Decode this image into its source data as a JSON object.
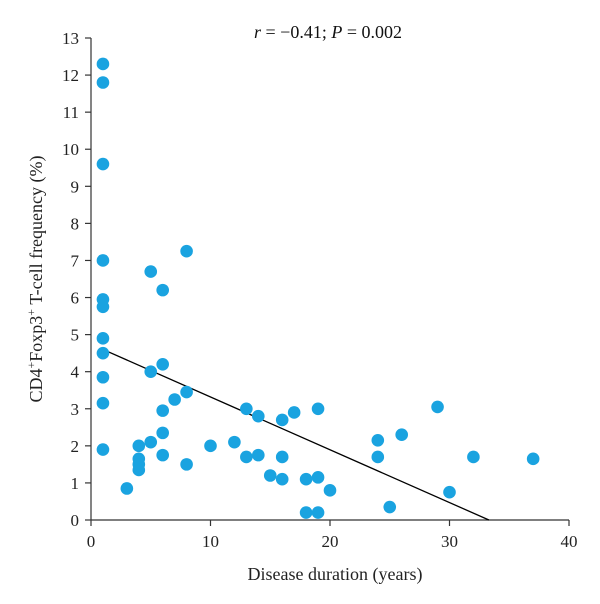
{
  "chart_data": {
    "type": "scatter",
    "title": "",
    "xlabel": "Disease duration (years)",
    "ylabel_parts": [
      "CD4",
      "+",
      "Foxp3",
      "+",
      " T-cell frequency (%)"
    ],
    "annotation_parts": [
      "r",
      " = −0.41; ",
      "P",
      " = 0.002"
    ],
    "xlim": [
      0,
      40
    ],
    "ylim": [
      0,
      13
    ],
    "x_ticks": [
      0,
      10,
      20,
      30,
      40
    ],
    "y_ticks": [
      0,
      1,
      2,
      3,
      4,
      5,
      6,
      7,
      8,
      9,
      10,
      11,
      12,
      13
    ],
    "grid": false,
    "marker_color": "#1aa3e0",
    "line_color": "#000000",
    "points": [
      {
        "x": 1,
        "y": 12.3
      },
      {
        "x": 1,
        "y": 11.8
      },
      {
        "x": 1,
        "y": 9.6
      },
      {
        "x": 1,
        "y": 7.0
      },
      {
        "x": 1,
        "y": 5.95
      },
      {
        "x": 1,
        "y": 5.75
      },
      {
        "x": 1,
        "y": 4.9
      },
      {
        "x": 1,
        "y": 4.5
      },
      {
        "x": 1,
        "y": 3.85
      },
      {
        "x": 1,
        "y": 3.15
      },
      {
        "x": 1,
        "y": 1.9
      },
      {
        "x": 3,
        "y": 0.85
      },
      {
        "x": 4,
        "y": 2.0
      },
      {
        "x": 4,
        "y": 1.65
      },
      {
        "x": 4,
        "y": 1.5
      },
      {
        "x": 4,
        "y": 1.35
      },
      {
        "x": 5,
        "y": 6.7
      },
      {
        "x": 5,
        "y": 4.0
      },
      {
        "x": 5,
        "y": 2.1
      },
      {
        "x": 6,
        "y": 6.2
      },
      {
        "x": 6,
        "y": 4.2
      },
      {
        "x": 6,
        "y": 2.95
      },
      {
        "x": 6,
        "y": 2.35
      },
      {
        "x": 6,
        "y": 1.75
      },
      {
        "x": 7,
        "y": 3.25
      },
      {
        "x": 8,
        "y": 7.25
      },
      {
        "x": 8,
        "y": 3.45
      },
      {
        "x": 8,
        "y": 1.5
      },
      {
        "x": 10,
        "y": 2.0
      },
      {
        "x": 12,
        "y": 2.1
      },
      {
        "x": 13,
        "y": 3.0
      },
      {
        "x": 13,
        "y": 1.7
      },
      {
        "x": 14,
        "y": 2.8
      },
      {
        "x": 14,
        "y": 1.75
      },
      {
        "x": 15,
        "y": 1.2
      },
      {
        "x": 16,
        "y": 2.7
      },
      {
        "x": 16,
        "y": 1.7
      },
      {
        "x": 16,
        "y": 1.1
      },
      {
        "x": 17,
        "y": 2.9
      },
      {
        "x": 18,
        "y": 1.1
      },
      {
        "x": 18,
        "y": 0.2
      },
      {
        "x": 19,
        "y": 3.0
      },
      {
        "x": 19,
        "y": 1.15
      },
      {
        "x": 19,
        "y": 0.2
      },
      {
        "x": 20,
        "y": 0.8
      },
      {
        "x": 24,
        "y": 2.15
      },
      {
        "x": 24,
        "y": 1.7
      },
      {
        "x": 25,
        "y": 0.35
      },
      {
        "x": 26,
        "y": 2.3
      },
      {
        "x": 29,
        "y": 3.05
      },
      {
        "x": 30,
        "y": 0.75
      },
      {
        "x": 32,
        "y": 1.7
      },
      {
        "x": 37,
        "y": 1.65
      }
    ],
    "trendline": {
      "x": [
        1,
        33.3
      ],
      "y": [
        4.6,
        0
      ]
    }
  }
}
